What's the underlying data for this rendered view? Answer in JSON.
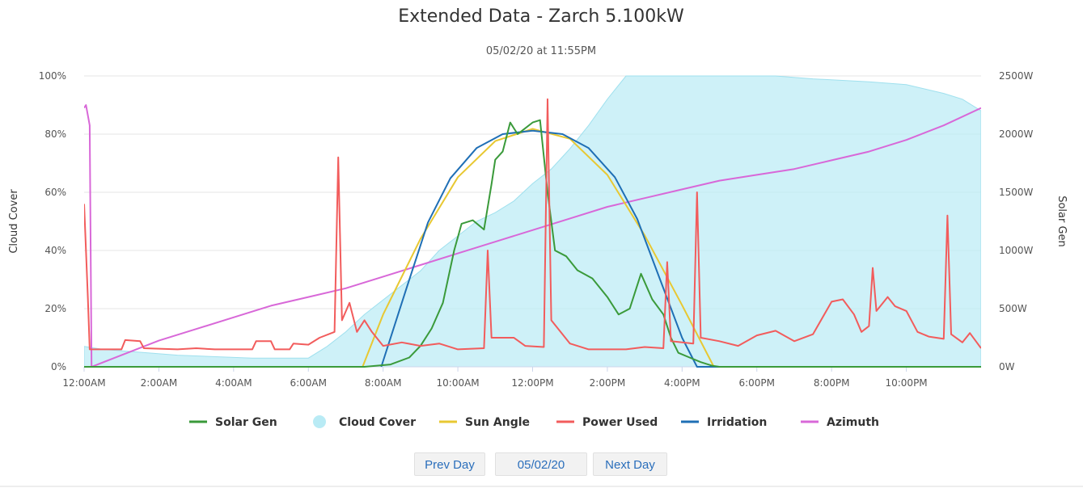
{
  "chart_data": {
    "type": "line",
    "title": "Extended Data - Zarch 5.100kW",
    "subtitle": "05/02/20 at 11:55PM",
    "y_left": {
      "label": "Cloud Cover",
      "range": [
        0,
        100
      ],
      "ticks": [
        "0%",
        "20%",
        "40%",
        "60%",
        "80%",
        "100%"
      ]
    },
    "y_right": {
      "label": "Solar Gen",
      "range": [
        0,
        2500
      ],
      "ticks": [
        "0W",
        "500W",
        "1000W",
        "1500W",
        "2000W",
        "2500W"
      ]
    },
    "x_axis": {
      "range_hours": [
        0,
        24
      ],
      "ticks": [
        "12:00AM",
        "2:00AM",
        "4:00AM",
        "6:00AM",
        "8:00AM",
        "10:00AM",
        "12:00PM",
        "2:00PM",
        "4:00PM",
        "6:00PM",
        "8:00PM",
        "10:00PM"
      ]
    },
    "grid": true,
    "legend_position": "bottom-center",
    "series": [
      {
        "name": "Solar Gen",
        "axis": "right",
        "color": "#3a9a3a",
        "points": [
          [
            0,
            0
          ],
          [
            7.5,
            0
          ],
          [
            8.2,
            20
          ],
          [
            8.7,
            80
          ],
          [
            9.0,
            180
          ],
          [
            9.3,
            330
          ],
          [
            9.6,
            550
          ],
          [
            9.9,
            1000
          ],
          [
            10.1,
            1230
          ],
          [
            10.4,
            1260
          ],
          [
            10.7,
            1180
          ],
          [
            10.9,
            1570
          ],
          [
            11.0,
            1780
          ],
          [
            11.2,
            1850
          ],
          [
            11.4,
            2100
          ],
          [
            11.6,
            2000
          ],
          [
            11.8,
            2050
          ],
          [
            12.0,
            2100
          ],
          [
            12.2,
            2120
          ],
          [
            12.4,
            1500
          ],
          [
            12.6,
            1000
          ],
          [
            12.9,
            950
          ],
          [
            13.2,
            830
          ],
          [
            13.6,
            760
          ],
          [
            14.0,
            600
          ],
          [
            14.3,
            450
          ],
          [
            14.6,
            500
          ],
          [
            14.9,
            800
          ],
          [
            15.2,
            580
          ],
          [
            15.5,
            450
          ],
          [
            15.7,
            250
          ],
          [
            15.9,
            120
          ],
          [
            16.2,
            80
          ],
          [
            16.5,
            40
          ],
          [
            16.8,
            10
          ],
          [
            17.0,
            0
          ],
          [
            24,
            0
          ]
        ]
      },
      {
        "name": "Cloud Cover",
        "axis": "left",
        "color": "#b9ebf5",
        "points": [
          [
            0,
            7
          ],
          [
            0.5,
            6
          ],
          [
            1.5,
            5
          ],
          [
            2.5,
            4
          ],
          [
            4.5,
            3
          ],
          [
            6.0,
            3
          ],
          [
            6.5,
            7
          ],
          [
            7.0,
            12
          ],
          [
            7.5,
            18
          ],
          [
            8.0,
            23
          ],
          [
            8.5,
            28
          ],
          [
            9.0,
            33
          ],
          [
            9.5,
            40
          ],
          [
            10.0,
            45
          ],
          [
            10.5,
            50
          ],
          [
            11.0,
            53
          ],
          [
            11.5,
            57
          ],
          [
            12.0,
            63
          ],
          [
            12.5,
            68
          ],
          [
            13.0,
            75
          ],
          [
            13.5,
            83
          ],
          [
            14.0,
            92
          ],
          [
            14.5,
            100
          ],
          [
            18.5,
            100
          ],
          [
            19.5,
            99
          ],
          [
            21.0,
            98
          ],
          [
            22.0,
            97
          ],
          [
            23.0,
            94
          ],
          [
            23.5,
            92
          ],
          [
            24.0,
            88
          ]
        ]
      },
      {
        "name": "Sun Angle",
        "axis": "right",
        "color": "#e8c832",
        "points": [
          [
            7.45,
            0
          ],
          [
            8.0,
            450
          ],
          [
            9.0,
            1100
          ],
          [
            10.0,
            1630
          ],
          [
            11.0,
            1940
          ],
          [
            12.0,
            2045
          ],
          [
            13.0,
            1960
          ],
          [
            14.0,
            1650
          ],
          [
            15.0,
            1130
          ],
          [
            16.0,
            530
          ],
          [
            16.85,
            0
          ]
        ]
      },
      {
        "name": "Power Used",
        "axis": "right",
        "color": "#f25c5c",
        "points": [
          [
            0,
            1400
          ],
          [
            0.1,
            600
          ],
          [
            0.15,
            150
          ],
          [
            1.0,
            150
          ],
          [
            1.1,
            230
          ],
          [
            1.5,
            220
          ],
          [
            1.6,
            160
          ],
          [
            2.5,
            150
          ],
          [
            3.0,
            160
          ],
          [
            3.5,
            150
          ],
          [
            4.5,
            150
          ],
          [
            4.6,
            220
          ],
          [
            5.0,
            220
          ],
          [
            5.1,
            150
          ],
          [
            5.5,
            150
          ],
          [
            5.6,
            200
          ],
          [
            6.0,
            190
          ],
          [
            6.3,
            250
          ],
          [
            6.7,
            300
          ],
          [
            6.8,
            1800
          ],
          [
            6.9,
            400
          ],
          [
            7.1,
            550
          ],
          [
            7.3,
            300
          ],
          [
            7.5,
            400
          ],
          [
            7.7,
            300
          ],
          [
            8.0,
            180
          ],
          [
            8.5,
            210
          ],
          [
            9.0,
            180
          ],
          [
            9.5,
            200
          ],
          [
            10.0,
            150
          ],
          [
            10.7,
            160
          ],
          [
            10.8,
            1000
          ],
          [
            10.9,
            250
          ],
          [
            11.5,
            250
          ],
          [
            11.8,
            180
          ],
          [
            12.3,
            170
          ],
          [
            12.4,
            2300
          ],
          [
            12.5,
            400
          ],
          [
            13.0,
            200
          ],
          [
            13.5,
            150
          ],
          [
            14.5,
            150
          ],
          [
            15.0,
            170
          ],
          [
            15.5,
            160
          ],
          [
            15.6,
            900
          ],
          [
            15.7,
            220
          ],
          [
            16.3,
            200
          ],
          [
            16.4,
            1500
          ],
          [
            16.5,
            250
          ],
          [
            17.0,
            220
          ],
          [
            17.5,
            180
          ],
          [
            18.0,
            270
          ],
          [
            18.5,
            310
          ],
          [
            19.0,
            220
          ],
          [
            19.5,
            280
          ],
          [
            20.0,
            560
          ],
          [
            20.3,
            580
          ],
          [
            20.6,
            450
          ],
          [
            20.8,
            300
          ],
          [
            21.0,
            350
          ],
          [
            21.1,
            850
          ],
          [
            21.2,
            480
          ],
          [
            21.5,
            600
          ],
          [
            21.7,
            520
          ],
          [
            22.0,
            480
          ],
          [
            22.3,
            300
          ],
          [
            22.6,
            260
          ],
          [
            23.0,
            240
          ],
          [
            23.1,
            1300
          ],
          [
            23.2,
            280
          ],
          [
            23.5,
            210
          ],
          [
            23.7,
            290
          ],
          [
            24.0,
            160
          ]
        ]
      },
      {
        "name": "Irridation",
        "axis": "right",
        "color": "#1f6fb5",
        "points": [
          [
            7.95,
            0
          ],
          [
            8.6,
            650
          ],
          [
            9.2,
            1240
          ],
          [
            9.8,
            1620
          ],
          [
            10.5,
            1880
          ],
          [
            11.2,
            2000
          ],
          [
            12.0,
            2030
          ],
          [
            12.8,
            2000
          ],
          [
            13.5,
            1880
          ],
          [
            14.2,
            1630
          ],
          [
            14.8,
            1270
          ],
          [
            15.4,
            760
          ],
          [
            16.0,
            250
          ],
          [
            16.4,
            0
          ],
          [
            24,
            0
          ]
        ]
      },
      {
        "name": "Azimuth",
        "axis": "left",
        "color": "#d868d8",
        "points": [
          [
            0,
            89
          ],
          [
            0.05,
            90
          ],
          [
            0.15,
            83
          ],
          [
            0.2,
            0
          ],
          [
            1.0,
            4
          ],
          [
            2.0,
            9
          ],
          [
            3.0,
            13
          ],
          [
            4.0,
            17
          ],
          [
            5.0,
            21
          ],
          [
            6.0,
            24
          ],
          [
            7.0,
            27
          ],
          [
            8.0,
            31
          ],
          [
            9.0,
            35
          ],
          [
            10.0,
            39
          ],
          [
            11.0,
            43
          ],
          [
            12.0,
            47
          ],
          [
            13.0,
            51
          ],
          [
            14.0,
            55
          ],
          [
            15.0,
            58
          ],
          [
            16.0,
            61
          ],
          [
            17.0,
            64
          ],
          [
            18.0,
            66
          ],
          [
            19.0,
            68
          ],
          [
            20.0,
            71
          ],
          [
            21.0,
            74
          ],
          [
            22.0,
            78
          ],
          [
            23.0,
            83
          ],
          [
            24.0,
            89
          ]
        ]
      }
    ]
  },
  "nav": {
    "prev_label": "Prev Day",
    "date_label": "05/02/20",
    "next_label": "Next Day"
  }
}
